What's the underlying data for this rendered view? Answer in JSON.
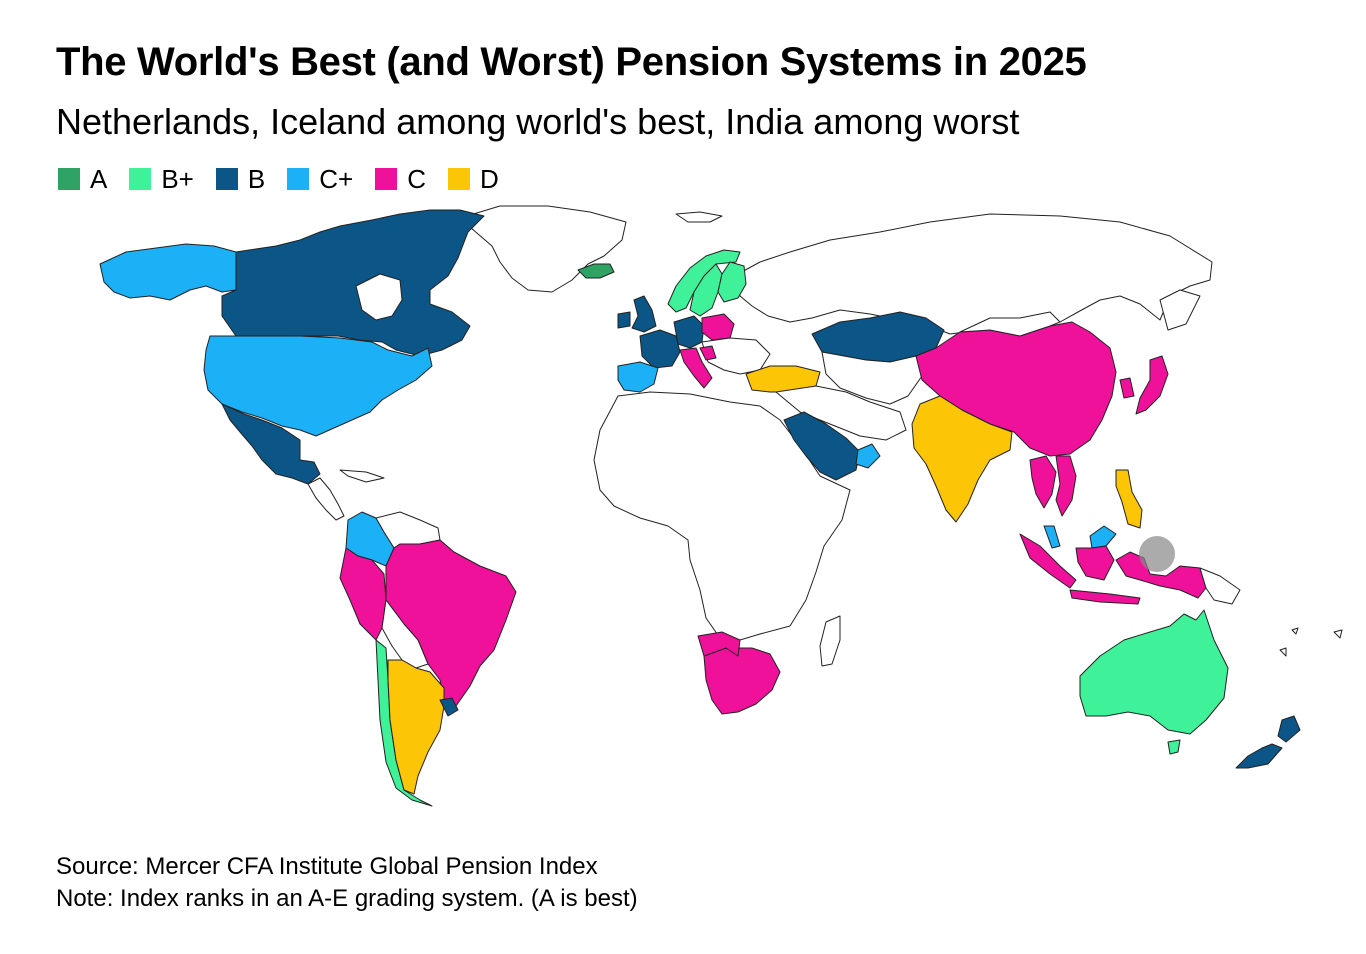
{
  "title": "The World's Best (and Worst) Pension Systems in 2025",
  "subtitle": "Netherlands, Iceland among world's best, India among worst",
  "legend": [
    {
      "grade": "A",
      "color": "#2ea364"
    },
    {
      "grade": "B+",
      "color": "#3ff29a"
    },
    {
      "grade": "B",
      "color": "#0b5687"
    },
    {
      "grade": "C+",
      "color": "#1cb0f6"
    },
    {
      "grade": "C",
      "color": "#f0119b"
    },
    {
      "grade": "D",
      "color": "#fcc506"
    }
  ],
  "map": {
    "colors": {
      "A": "#2ea364",
      "B+": "#3ff29a",
      "B": "#0b5687",
      "C+": "#1cb0f6",
      "C": "#f0119b",
      "D": "#fcc506",
      "none": "#ffffff"
    },
    "regions": [
      {
        "name": "Alaska",
        "grade": "C+"
      },
      {
        "name": "Canada",
        "grade": "B"
      },
      {
        "name": "United States",
        "grade": "C+"
      },
      {
        "name": "Mexico",
        "grade": "B"
      },
      {
        "name": "Colombia",
        "grade": "C+"
      },
      {
        "name": "Peru",
        "grade": "C"
      },
      {
        "name": "Brazil",
        "grade": "C"
      },
      {
        "name": "Chile",
        "grade": "B+"
      },
      {
        "name": "Argentina",
        "grade": "D"
      },
      {
        "name": "Uruguay",
        "grade": "B"
      },
      {
        "name": "Iceland",
        "grade": "A"
      },
      {
        "name": "Norway",
        "grade": "B+"
      },
      {
        "name": "Sweden",
        "grade": "B+"
      },
      {
        "name": "Finland",
        "grade": "B+"
      },
      {
        "name": "United Kingdom",
        "grade": "B"
      },
      {
        "name": "Ireland",
        "grade": "B"
      },
      {
        "name": "France",
        "grade": "B"
      },
      {
        "name": "Germany",
        "grade": "B"
      },
      {
        "name": "Poland",
        "grade": "C"
      },
      {
        "name": "Spain",
        "grade": "C+"
      },
      {
        "name": "Italy",
        "grade": "C"
      },
      {
        "name": "Croatia",
        "grade": "C"
      },
      {
        "name": "Turkey",
        "grade": "D"
      },
      {
        "name": "Kazakhstan",
        "grade": "B"
      },
      {
        "name": "Saudi Arabia",
        "grade": "B"
      },
      {
        "name": "United Arab Emirates",
        "grade": "C+"
      },
      {
        "name": "India",
        "grade": "D"
      },
      {
        "name": "China",
        "grade": "C"
      },
      {
        "name": "Japan",
        "grade": "C"
      },
      {
        "name": "South Korea",
        "grade": "C"
      },
      {
        "name": "Thailand",
        "grade": "C"
      },
      {
        "name": "Vietnam",
        "grade": "C"
      },
      {
        "name": "Philippines",
        "grade": "D"
      },
      {
        "name": "Malaysia",
        "grade": "C+"
      },
      {
        "name": "Indonesia",
        "grade": "C"
      },
      {
        "name": "South Africa",
        "grade": "C"
      },
      {
        "name": "Botswana",
        "grade": "C"
      },
      {
        "name": "Australia",
        "grade": "B+"
      },
      {
        "name": "New Zealand",
        "grade": "B"
      }
    ]
  },
  "notes": {
    "source": "Source: Mercer CFA Institute Global Pension Index",
    "note": "Note: Index ranks in an A-E grading system. (A is best)"
  }
}
